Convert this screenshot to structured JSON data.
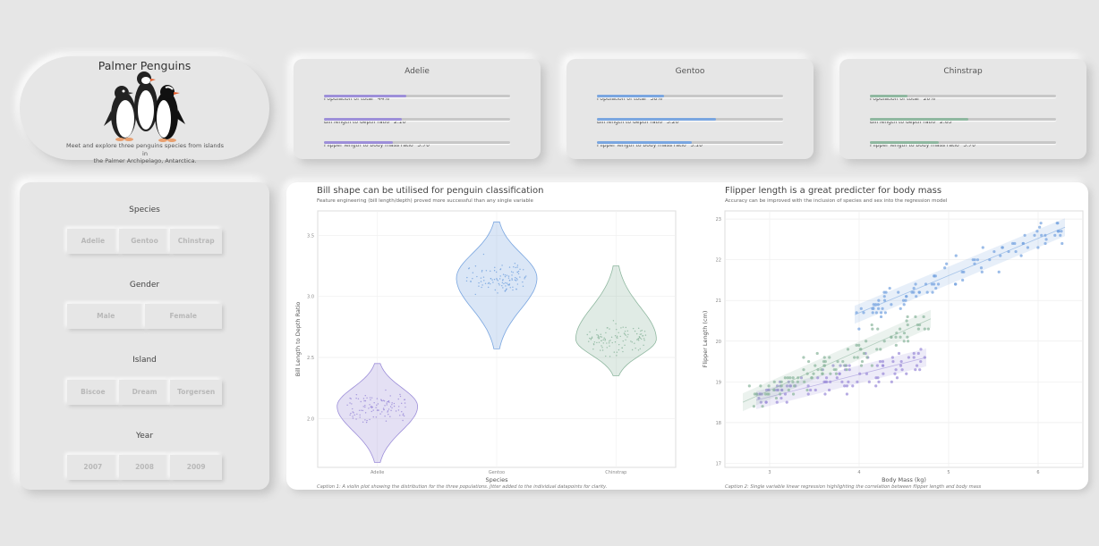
{
  "header": {
    "title": "Palmer Penguins",
    "description_line1": "Meet and explore three penguins species from islands in",
    "description_line2": "the Palmer Archipelago, Antarctica."
  },
  "species_cards": [
    {
      "name": "Adelie",
      "color": "#9d8fd9",
      "stats": [
        {
          "label": "Population of total",
          "value": "44%",
          "fraction": 0.44
        },
        {
          "label": "Bill length to depth ratio",
          "value": "2.10",
          "fraction": 0.42
        },
        {
          "label": "Flipper length to body mass ratio",
          "value": "3.70",
          "fraction": 0.37
        }
      ]
    },
    {
      "name": "Gentoo",
      "color": "#7aa6e0",
      "stats": [
        {
          "label": "Population of total",
          "value": "36%",
          "fraction": 0.36
        },
        {
          "label": "Bill length to depth ratio",
          "value": "3.20",
          "fraction": 0.64
        },
        {
          "label": "Flipper length to body mass ratio",
          "value": "5.10",
          "fraction": 0.51
        }
      ]
    },
    {
      "name": "Chinstrap",
      "color": "#8fb8a0",
      "stats": [
        {
          "label": "Population of total",
          "value": "20%",
          "fraction": 0.2
        },
        {
          "label": "Bill length to depth ratio",
          "value": "2.65",
          "fraction": 0.53
        },
        {
          "label": "Flipper length to body mass ratio",
          "value": "3.70",
          "fraction": 0.37
        }
      ]
    }
  ],
  "filters": {
    "species": {
      "title": "Species",
      "options": [
        "Adelie",
        "Gentoo",
        "Chinstrap"
      ]
    },
    "gender": {
      "title": "Gender",
      "options": [
        "Male",
        "Female"
      ]
    },
    "island": {
      "title": "Island",
      "options": [
        "Biscoe",
        "Dream",
        "Torgersen"
      ]
    },
    "year": {
      "title": "Year",
      "options": [
        "2007",
        "2008",
        "2009"
      ]
    }
  },
  "charts": {
    "violin": {
      "title": "Bill shape can be utilised for penguin classification",
      "subtitle": "Feature engineering (bill length/depth) proved more successful than any single variable",
      "caption": "Caption 1: A violin plot showing the distribution for the three populations. Jitter added to the individual datapoints for clarity."
    },
    "scatter": {
      "title": "Flipper length is a great predicter for body mass",
      "subtitle": "Accuracy can be improved with the inclusion of species and sex into the regression model",
      "caption": "Caption 2: Single variable linear regression highlighting the correlation between flipper length and body mass"
    }
  },
  "chart_data": [
    {
      "type": "violin",
      "xlabel": "Species",
      "ylabel": "Bill Length to Depth Ratio",
      "categories": [
        "Adelie",
        "Gentoo",
        "Chinstrap"
      ],
      "ylim": [
        1.6,
        3.7
      ],
      "yticks": [
        "2.0",
        "2.5",
        "3.0",
        "3.5"
      ],
      "series": [
        {
          "category": "Adelie",
          "min": 1.64,
          "max": 2.45,
          "median": 2.1,
          "color": "#9d8fd9"
        },
        {
          "category": "Gentoo",
          "min": 2.57,
          "max": 3.61,
          "median": 3.15,
          "color": "#7aa6e0"
        },
        {
          "category": "Chinstrap",
          "min": 2.35,
          "max": 3.25,
          "median": 2.65,
          "color": "#8fb8a0"
        }
      ]
    },
    {
      "type": "scatter",
      "xlabel": "Body Mass (kg)",
      "ylabel": "Flipper Length (cm)",
      "xlim": [
        2.5,
        6.5
      ],
      "ylim": [
        16.9,
        23.2
      ],
      "xticks": [
        "3",
        "4",
        "5",
        "6"
      ],
      "yticks": [
        "17",
        "18",
        "19",
        "20",
        "21",
        "22",
        "23"
      ],
      "series": [
        {
          "name": "Adelie",
          "color": "#9d8fd9",
          "x_range": [
            2.85,
            4.75
          ],
          "fit": [
            [
              2.85,
              18.55
            ],
            [
              4.75,
              19.6
            ]
          ]
        },
        {
          "name": "Gentoo",
          "color": "#7aa6e0",
          "x_range": [
            3.95,
            6.3
          ],
          "fit": [
            [
              3.95,
              20.65
            ],
            [
              6.3,
              22.8
            ]
          ]
        },
        {
          "name": "Chinstrap",
          "color": "#8fb8a0",
          "x_range": [
            2.7,
            4.8
          ],
          "fit": [
            [
              2.7,
              18.5
            ],
            [
              4.8,
              20.55
            ]
          ]
        }
      ]
    }
  ]
}
